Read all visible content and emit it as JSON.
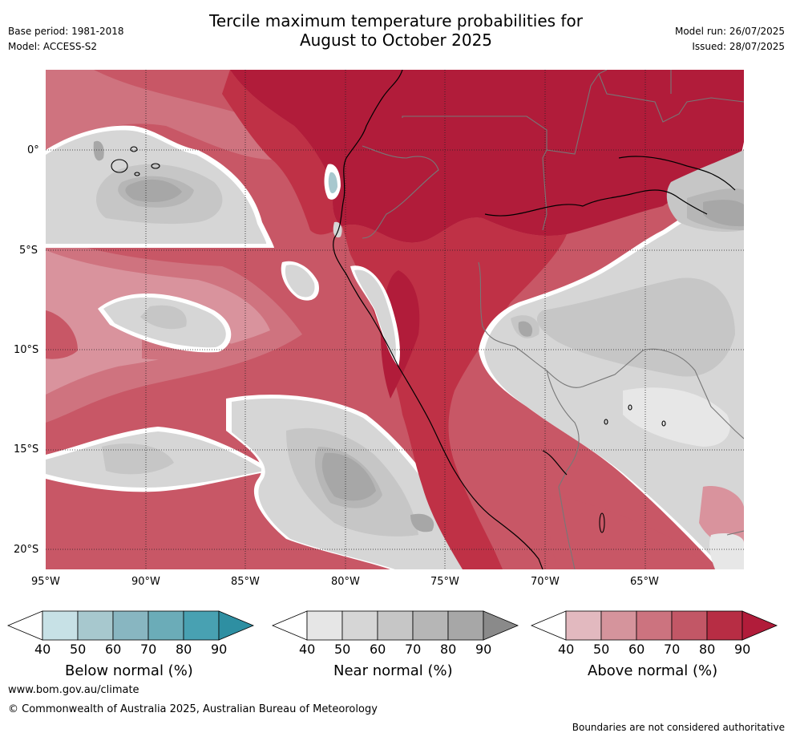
{
  "header": {
    "base_period": "Base period: 1981-2018",
    "model": "Model: ACCESS-S2",
    "title_line1": "Tercile maximum temperature probabilities for",
    "title_line2": "August to October 2025",
    "model_run": "Model run: 26/07/2025",
    "issued": "Issued: 28/07/2025"
  },
  "map": {
    "lat_labels": [
      "0°",
      "5°S",
      "10°S",
      "15°S",
      "20°S"
    ],
    "lon_labels": [
      "95°W",
      "90°W",
      "85°W",
      "80°W",
      "75°W",
      "70°W",
      "65°W"
    ],
    "lat_range": [
      -21,
      4
    ],
    "lon_range": [
      -95,
      -60.2
    ],
    "gridline_style": "dotted",
    "land_region": "South America (Ecuador, Peru, northern Chile, western Brazil, Bolivia)",
    "dominant_category_by_region": [
      {
        "region": "northern land and equatorial coast",
        "category": "above",
        "level": 90
      },
      {
        "region": "Peruvian coast strip",
        "category": "above",
        "level": 80
      },
      {
        "region": "open Pacific north of 5°S",
        "category": "near",
        "level": 50
      },
      {
        "region": "Pacific 13°S–20°S off Peru",
        "category": "near",
        "level": 60
      },
      {
        "region": "Amazon interior / Bolivia east",
        "category": "near",
        "level": 50
      },
      {
        "region": "far SW Pacific",
        "category": "above",
        "level": 70
      }
    ]
  },
  "legends": [
    {
      "label": "Below normal (%)",
      "ticks": [
        "40",
        "50",
        "60",
        "70",
        "80",
        "90"
      ],
      "colors": [
        "#ffffff",
        "#c7e1e6",
        "#a7c8ce",
        "#88b6c1",
        "#6bacb8",
        "#48a1b2",
        "#2e8fa2"
      ]
    },
    {
      "label": "Near normal (%)",
      "ticks": [
        "40",
        "50",
        "60",
        "70",
        "80",
        "90"
      ],
      "colors": [
        "#ffffff",
        "#e6e6e6",
        "#d6d6d6",
        "#c6c6c6",
        "#b6b6b6",
        "#a7a7a7",
        "#8a8a8a"
      ]
    },
    {
      "label": "Above normal (%)",
      "ticks": [
        "40",
        "50",
        "60",
        "70",
        "80",
        "90"
      ],
      "colors": [
        "#ffffff",
        "#e2b9bf",
        "#d5949c",
        "#cc737f",
        "#c25766",
        "#b72d44",
        "#b11c3a"
      ]
    }
  ],
  "footer": {
    "url": "www.bom.gov.au/climate",
    "copyright": "© Commonwealth of Australia 2025, Australian Bureau of Meteorology",
    "disclaimer": "Boundaries are not considered authoritative"
  },
  "colors": {
    "above90": "#b11c3a",
    "above80": "#bf3146",
    "above70": "#c85766",
    "above60": "#cf737f",
    "above50": "#d9939d",
    "above40": "#e6babf",
    "near40": "#e7e7e7",
    "near50": "#d6d6d6",
    "near60": "#c6c6c6",
    "near70": "#b6b6b6",
    "near80": "#a7a7a7",
    "below60": "#a7c8ce"
  }
}
